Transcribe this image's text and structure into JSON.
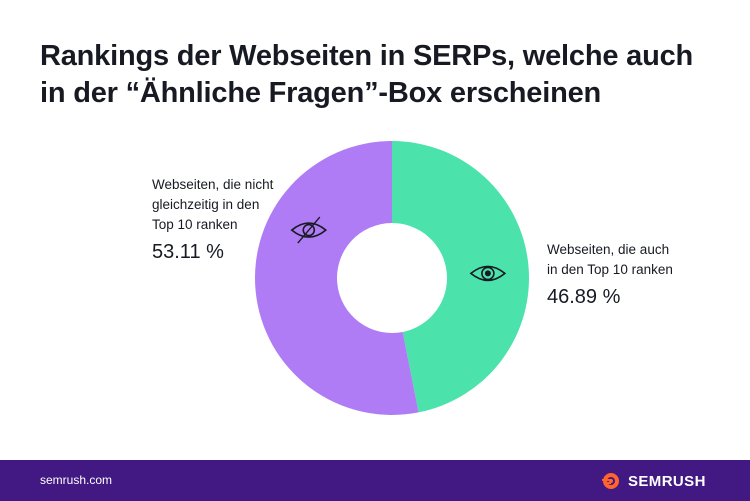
{
  "title_lines": [
    "Rankings der Webseiten in SERPs, welche auch",
    "in der “Ähnliche Fragen”-Box erscheinen"
  ],
  "colors": {
    "left_slice": "#b07cf5",
    "right_slice": "#4be2ac",
    "footer": "#421983",
    "brand_orange": "#ff642d"
  },
  "chart_data": {
    "type": "pie",
    "variant": "donut",
    "title": "Rankings der Webseiten in SERPs, welche auch in der “Ähnliche Fragen”-Box erscheinen",
    "series": [
      {
        "label_lines": [
          "Webseiten, die auch",
          "in den Top 10 ranken"
        ],
        "value": 46.89,
        "value_label": "46.89 %",
        "color": "#4be2ac",
        "icon": "eye-icon"
      },
      {
        "label_lines": [
          "Webseiten, die nicht",
          "gleichzeitig in den",
          "Top 10 ranken"
        ],
        "value": 53.11,
        "value_label": "53.11 %",
        "color": "#b07cf5",
        "icon": "eye-crossed-icon"
      }
    ]
  },
  "footer": {
    "url": "semrush.com",
    "brand": "SEMRUSH"
  }
}
